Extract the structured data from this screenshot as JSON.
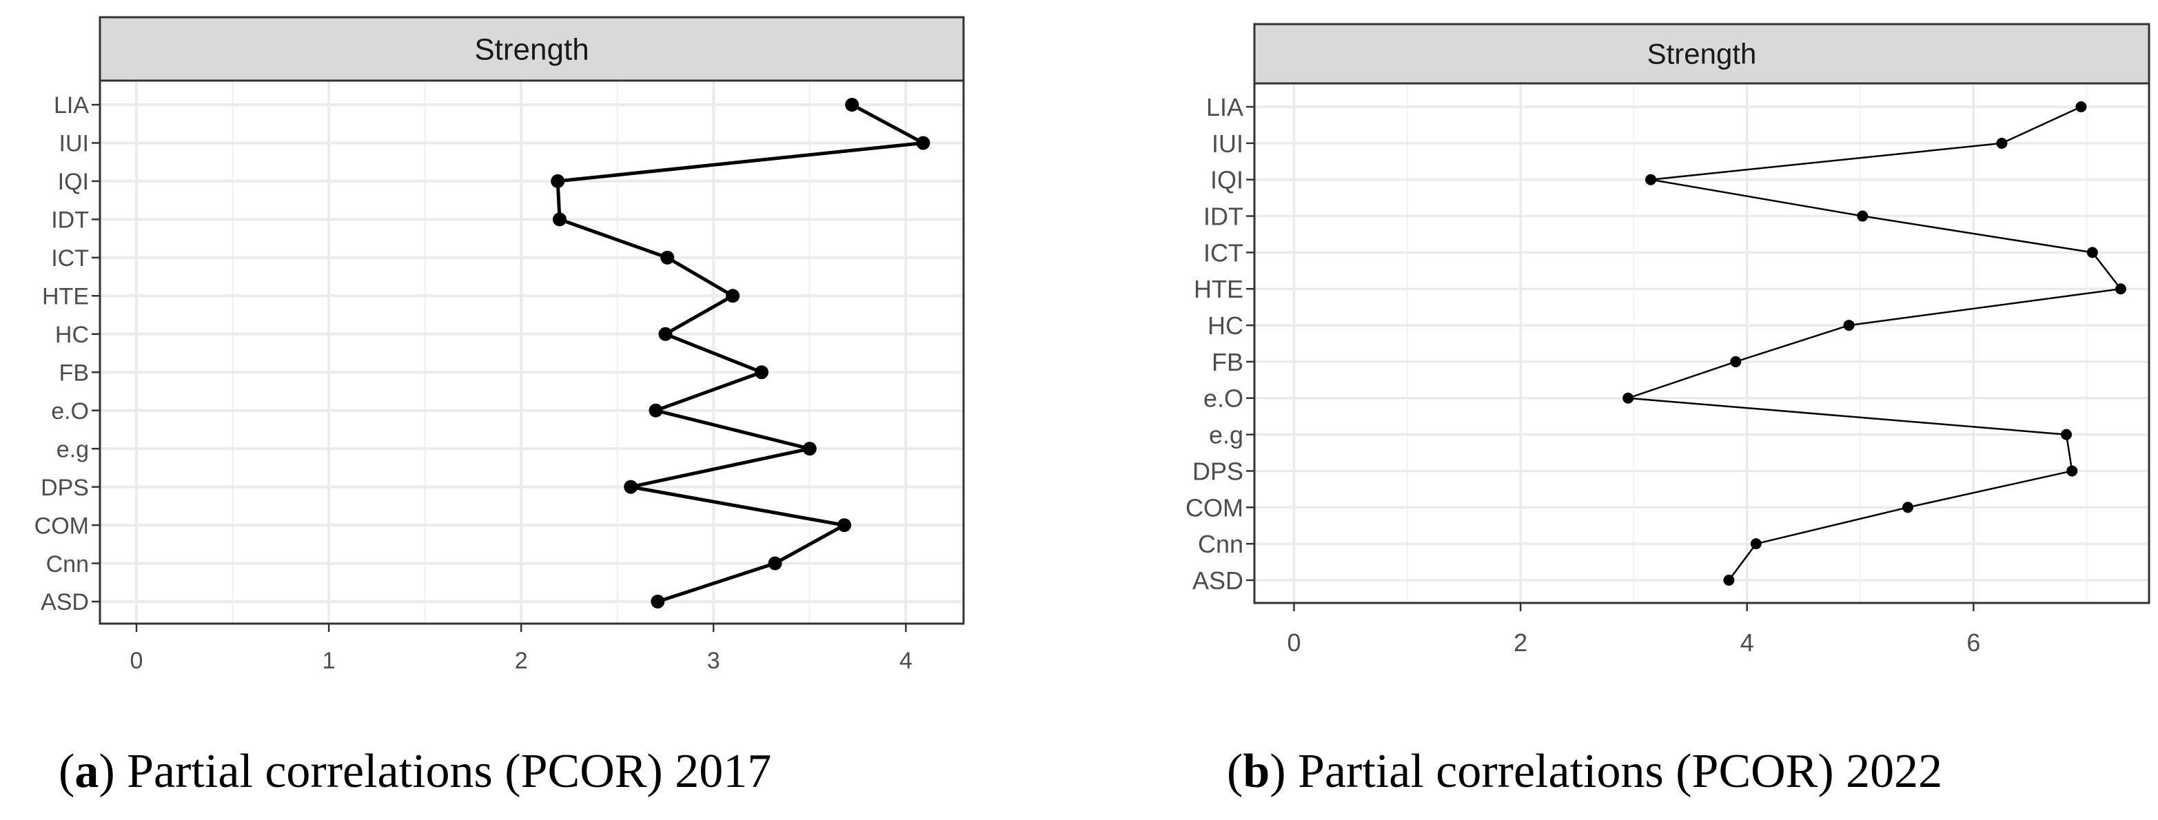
{
  "chart_data": [
    {
      "type": "line",
      "facet_label": "Strength",
      "categories": [
        "LIA",
        "IUI",
        "IQI",
        "IDT",
        "ICT",
        "HTE",
        "HC",
        "FB",
        "e.O",
        "e.g",
        "DPS",
        "COM",
        "Cnn",
        "ASD"
      ],
      "values": [
        3.72,
        4.09,
        2.19,
        2.2,
        2.76,
        3.1,
        2.75,
        3.25,
        2.7,
        3.5,
        2.57,
        3.68,
        3.32,
        2.71
      ],
      "xlim": [
        -0.19,
        4.3
      ],
      "xticks": [
        "0",
        "1",
        "2",
        "3",
        "4"
      ],
      "xtick_values": [
        0,
        1,
        2,
        3,
        4
      ],
      "grid": true,
      "caption_letter": "a",
      "caption_text": ") Partial correlations (PCOR) 2017"
    },
    {
      "type": "line",
      "facet_label": "Strength",
      "categories": [
        "LIA",
        "IUI",
        "IQI",
        "IDT",
        "ICT",
        "HTE",
        "HC",
        "FB",
        "e.O",
        "e.g",
        "DPS",
        "COM",
        "Cnn",
        "ASD"
      ],
      "values": [
        6.95,
        6.25,
        3.15,
        5.02,
        7.05,
        7.3,
        4.9,
        3.9,
        2.95,
        6.82,
        6.87,
        5.42,
        4.08,
        3.84
      ],
      "xlim": [
        -0.35,
        7.55
      ],
      "xticks": [
        "0",
        "2",
        "4",
        "6"
      ],
      "xtick_values": [
        0,
        2,
        4,
        6
      ],
      "grid": true,
      "caption_letter": "b",
      "caption_text": ") Partial correlations (PCOR) 2022"
    }
  ]
}
